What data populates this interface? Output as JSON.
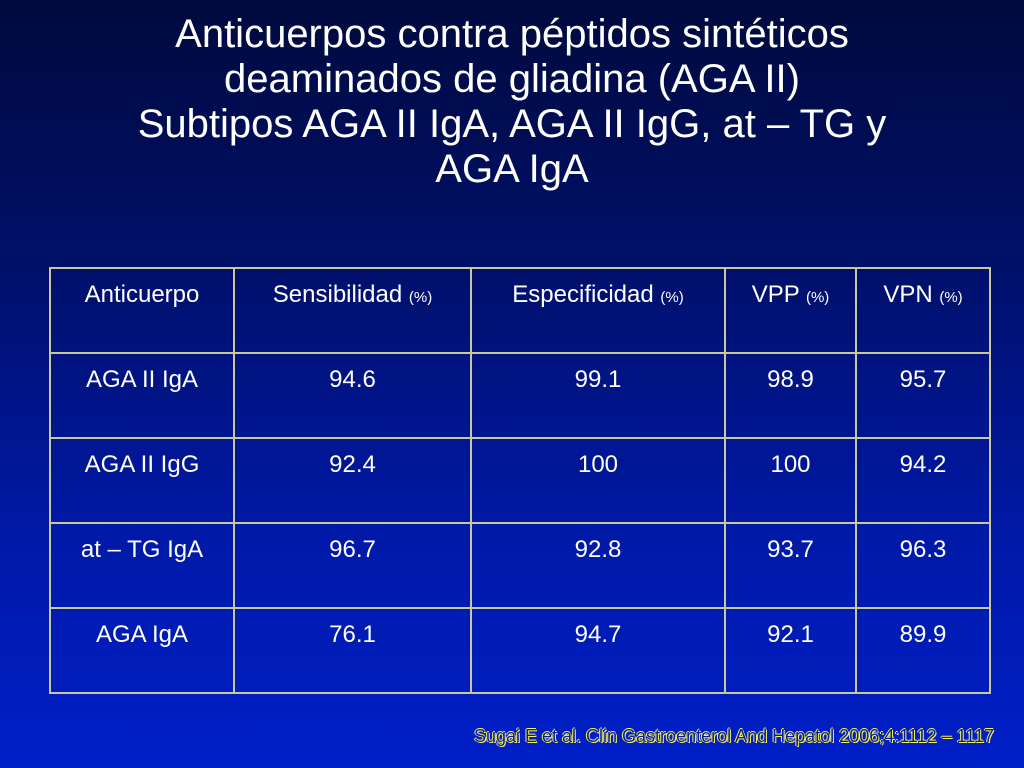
{
  "title": {
    "line1": "Anticuerpos contra péptidos sintéticos",
    "line2": "deaminados de gliadina (AGA II)",
    "line3": "Subtipos AGA II IgA, AGA II IgG, at – TG y",
    "line4": "AGA IgA"
  },
  "table": {
    "headers": [
      {
        "label": "Anticuerpo",
        "unit": ""
      },
      {
        "label": "Sensibilidad",
        "unit": "(%)"
      },
      {
        "label": "Especificidad",
        "unit": "(%)"
      },
      {
        "label": "VPP",
        "unit": "(%)"
      },
      {
        "label": "VPN",
        "unit": "(%)"
      }
    ],
    "rows": [
      [
        "AGA II IgA",
        "94.6",
        "99.1",
        "98.9",
        "95.7"
      ],
      [
        "AGA II IgG",
        "92.4",
        "100",
        "100",
        "94.2"
      ],
      [
        "at – TG IgA",
        "96.7",
        "92.8",
        "93.7",
        "96.3"
      ],
      [
        "AGA IgA",
        "76.1",
        "94.7",
        "92.1",
        "89.9"
      ]
    ]
  },
  "citation": "Sugai E et al. Clin Gastroenterol And Hepatol 2006;4:1112 – 1117"
}
